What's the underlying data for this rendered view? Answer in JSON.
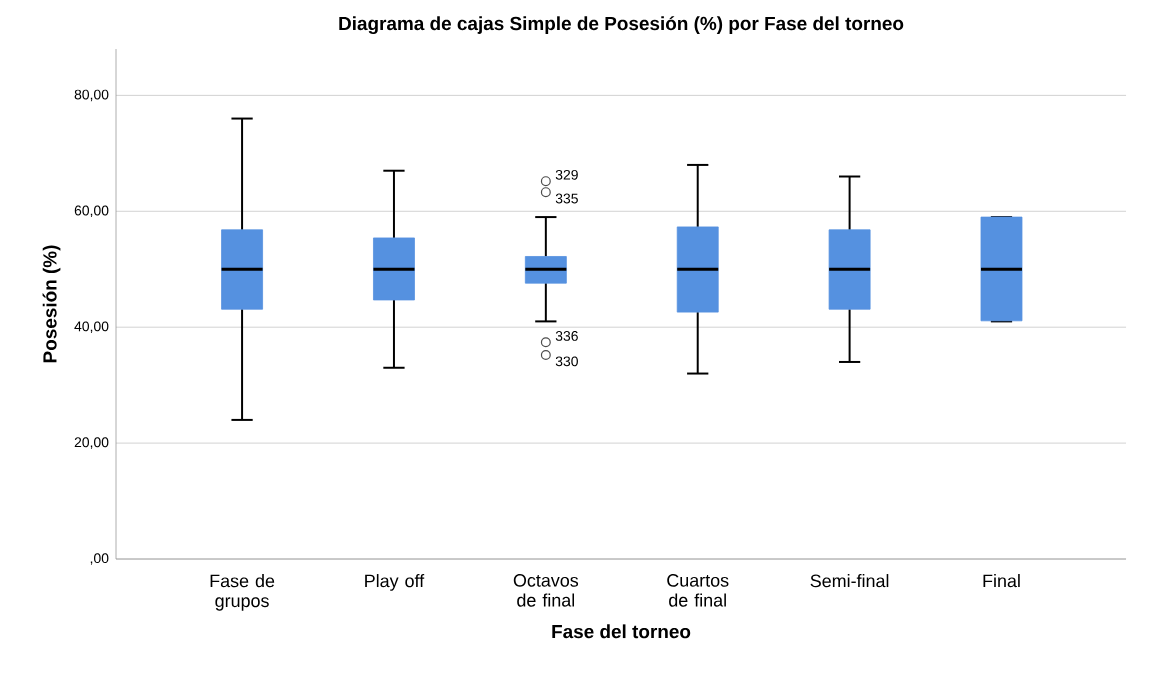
{
  "chart_data": {
    "type": "box",
    "title": "Diagrama de cajas Simple de Posesión (%) por Fase del torneo",
    "xlabel": "Fase del torneo",
    "ylabel": "Posesión (%)",
    "categories": [
      "Fase de grupos",
      "Play off",
      "Octavos de final",
      "Cuartos de final",
      "Semi-final",
      "Final"
    ],
    "color": "#5591e0",
    "boxes": [
      {
        "low": 24,
        "q1": 43.1,
        "median": 50,
        "q3": 56.8,
        "high": 76
      },
      {
        "low": 33,
        "q1": 44.7,
        "median": 50,
        "q3": 55.4,
        "high": 67
      },
      {
        "low": 41,
        "q1": 47.6,
        "median": 50,
        "q3": 52.2,
        "high": 59,
        "outliers": [
          65.2,
          63.3,
          37.4,
          35.2
        ]
      },
      {
        "low": 32,
        "q1": 42.6,
        "median": 50,
        "q3": 57.3,
        "high": 68
      },
      {
        "low": 34,
        "q1": 43.1,
        "median": 50,
        "q3": 56.8,
        "high": 66
      },
      {
        "low": 41,
        "q1": 41.1,
        "median": 50,
        "q3": 59,
        "high": 59
      }
    ],
    "annotations": [
      "329",
      "335",
      "336",
      "330"
    ],
    "ylim": [
      0,
      88
    ],
    "yticks": [
      {
        "value": 0,
        "label": ",00"
      },
      {
        "value": 20,
        "label": "20,00"
      },
      {
        "value": 40,
        "label": "40,00"
      },
      {
        "value": 60,
        "label": "60,00"
      },
      {
        "value": 80,
        "label": "80,00"
      }
    ],
    "grid": "y",
    "marker": "circle"
  }
}
